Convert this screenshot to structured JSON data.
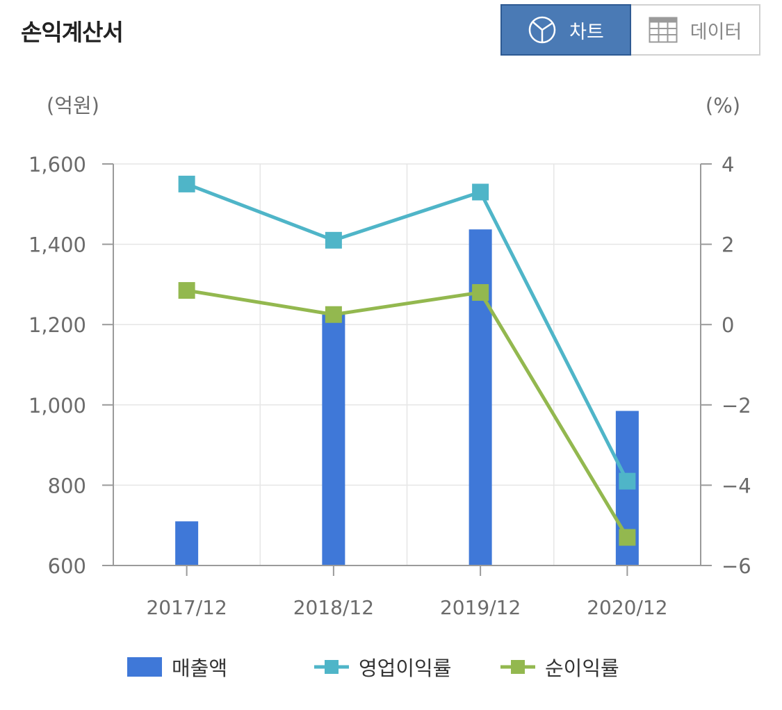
{
  "header": {
    "title": "손익계산서",
    "toggle": {
      "chart_label": "차트",
      "data_label": "데이터",
      "selected": "차트"
    }
  },
  "chart_data": {
    "type": "bar",
    "categories": [
      "2017/12",
      "2018/12",
      "2019/12",
      "2020/12"
    ],
    "y_left": {
      "unit_label": "(억원)",
      "range": [
        600,
        1600
      ],
      "ticks": [
        600,
        800,
        1000,
        1200,
        1400,
        1600
      ]
    },
    "y_right": {
      "unit_label": "(%)",
      "range": [
        -6,
        4
      ],
      "ticks": [
        -6,
        -4,
        -2,
        0,
        2,
        4
      ]
    },
    "grid": true,
    "legend_position": "bottom",
    "series": [
      {
        "name": "매출액",
        "type": "bar",
        "axis": "left",
        "color": "#3f78d8",
        "values": [
          710,
          1225,
          1437,
          985
        ]
      },
      {
        "name": "영업이익률",
        "type": "line",
        "axis": "right",
        "color": "#4fb5c8",
        "values": [
          3.5,
          2.1,
          3.3,
          -3.9
        ]
      },
      {
        "name": "순이익률",
        "type": "line",
        "axis": "right",
        "color": "#93b84f",
        "values": [
          0.85,
          0.25,
          0.8,
          -5.3
        ]
      }
    ]
  }
}
